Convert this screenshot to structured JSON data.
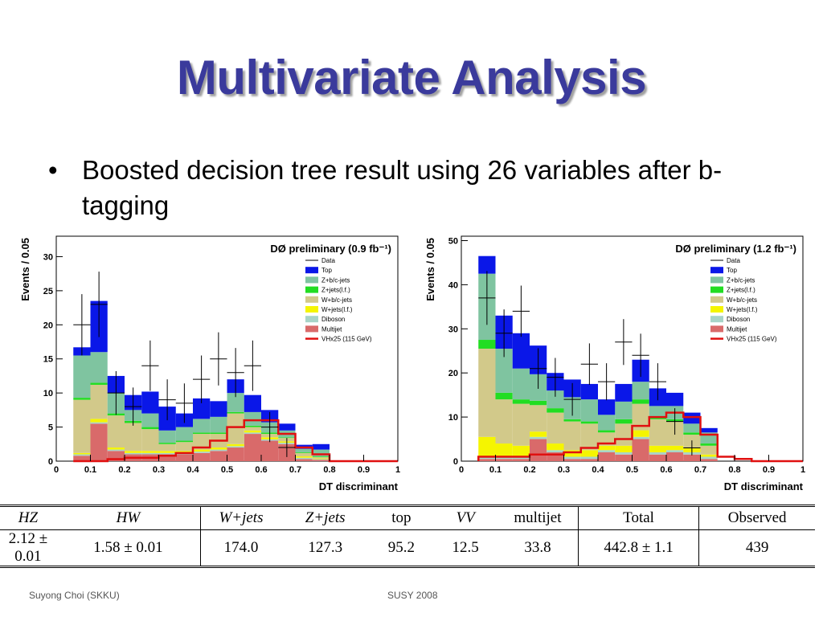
{
  "slide": {
    "title": "Multivariate Analysis",
    "bullet_symbol": "•",
    "bullet": "Boosted decision tree result using 26 variables after b-tagging",
    "footer_left": "Suyong Choi (SKKU)",
    "footer_center": "SUSY 2008"
  },
  "table": {
    "headers": [
      "HZ",
      "HW",
      "W+jets",
      "Z+jets",
      "top",
      "VV",
      "multijet",
      "Total",
      "Observed"
    ],
    "values": [
      "2.12 ± 0.01",
      "1.58 ± 0.01",
      "174.0",
      "127.3",
      "95.2",
      "12.5",
      "33.8",
      "442.8 ± 1.1",
      "439"
    ]
  },
  "chart_data": [
    {
      "type": "bar",
      "stacked": true,
      "title": "DØ preliminary (0.9 fb⁻¹)",
      "xlabel": "DT discriminant",
      "ylabel": "Events / 0.05",
      "xlim": [
        0,
        1
      ],
      "ylim": [
        0,
        33
      ],
      "yticks": [
        0,
        5,
        10,
        15,
        20,
        25,
        30
      ],
      "xticks": [
        0,
        0.1,
        0.2,
        0.3,
        0.4,
        0.5,
        0.6,
        0.7,
        0.8,
        0.9,
        1
      ],
      "bin_edges": [
        0.05,
        0.1,
        0.15,
        0.2,
        0.25,
        0.3,
        0.35,
        0.4,
        0.45,
        0.5,
        0.55,
        0.6,
        0.65,
        0.7,
        0.75,
        0.8,
        0.85,
        0.9,
        0.95,
        1.0
      ],
      "series": [
        {
          "name": "Multijet",
          "color": "#d96a6a",
          "values": [
            0.8,
            5.5,
            1.5,
            1,
            1,
            1,
            1,
            1.2,
            1.5,
            2,
            4,
            3,
            2.5,
            0.3,
            0.2,
            0,
            0,
            0,
            0
          ]
        },
        {
          "name": "Diboson",
          "color": "#a8d4c8",
          "values": [
            0.2,
            0.2,
            0.2,
            0.2,
            0.2,
            0.2,
            0.2,
            0.2,
            0.2,
            0.2,
            0.2,
            0.2,
            0.2,
            0.2,
            0.1,
            0,
            0,
            0,
            0
          ]
        },
        {
          "name": "W+jets(l.f.)",
          "color": "#f5f500",
          "values": [
            0.2,
            0.5,
            0.3,
            0.3,
            0.3,
            0.3,
            0.3,
            0.3,
            0.3,
            0.3,
            0.3,
            0.3,
            0.2,
            0.2,
            0.1,
            0,
            0,
            0,
            0
          ]
        },
        {
          "name": "W+b/c-jets",
          "color": "#d2c98a",
          "values": [
            7.8,
            5,
            4.7,
            4.1,
            3.2,
            1,
            1.3,
            2.3,
            2,
            4.5,
            0.5,
            0.5,
            0.5,
            0.5,
            0.2,
            0,
            0,
            0,
            0
          ]
        },
        {
          "name": "Z+jets(l.f.)",
          "color": "#22dd22",
          "values": [
            0.3,
            0.3,
            0.3,
            0.3,
            0.3,
            0.2,
            0.2,
            0.2,
            0.2,
            0.2,
            0.2,
            0.2,
            0.1,
            0.1,
            0.1,
            0,
            0,
            0,
            0
          ]
        },
        {
          "name": "Z+b/c-jets",
          "color": "#7fc4a0",
          "values": [
            6.2,
            4.5,
            3,
            1.6,
            2,
            1.8,
            2,
            2,
            2.3,
            2.8,
            2,
            1.5,
            1,
            0.5,
            1,
            0,
            0,
            0,
            0
          ]
        },
        {
          "name": "Top",
          "color": "#0a17e8",
          "values": [
            1.2,
            7.5,
            2.5,
            2.2,
            3.2,
            3.5,
            2,
            3,
            2.3,
            2,
            2.5,
            1.8,
            1,
            0.6,
            0.8,
            0,
            0,
            0,
            0
          ]
        }
      ],
      "data_label": "Data",
      "data": [
        {
          "x": 0.075,
          "y": 20,
          "err": 4.5
        },
        {
          "x": 0.125,
          "y": 23,
          "err": 4.8
        },
        {
          "x": 0.175,
          "y": 10,
          "err": 3.2
        },
        {
          "x": 0.225,
          "y": 8,
          "err": 2.8
        },
        {
          "x": 0.275,
          "y": 14,
          "err": 3.7
        },
        {
          "x": 0.325,
          "y": 9,
          "err": 3
        },
        {
          "x": 0.375,
          "y": 8.5,
          "err": 2.9
        },
        {
          "x": 0.425,
          "y": 12,
          "err": 3.5
        },
        {
          "x": 0.475,
          "y": 15,
          "err": 3.9
        },
        {
          "x": 0.525,
          "y": 13,
          "err": 3.6
        },
        {
          "x": 0.575,
          "y": 14,
          "err": 3.7
        },
        {
          "x": 0.625,
          "y": 5,
          "err": 2.2
        },
        {
          "x": 0.675,
          "y": 2,
          "err": 1.4
        }
      ],
      "signal": {
        "name": "VHx25 (115 GeV)",
        "color": "#e01010",
        "values": [
          0,
          0,
          0.3,
          0.5,
          0.5,
          0.8,
          1.2,
          2,
          3,
          5,
          6,
          6,
          4,
          2,
          1,
          0,
          0,
          0,
          0
        ]
      }
    },
    {
      "type": "bar",
      "stacked": true,
      "title": "DØ preliminary (1.2 fb⁻¹)",
      "xlabel": "DT discriminant",
      "ylabel": "Events / 0.05",
      "xlim": [
        0,
        1
      ],
      "ylim": [
        0,
        51
      ],
      "yticks": [
        0,
        10,
        20,
        30,
        40,
        50
      ],
      "xticks": [
        0,
        0.1,
        0.2,
        0.3,
        0.4,
        0.5,
        0.6,
        0.7,
        0.8,
        0.9,
        1
      ],
      "bin_edges": [
        0.05,
        0.1,
        0.15,
        0.2,
        0.25,
        0.3,
        0.35,
        0.4,
        0.45,
        0.5,
        0.55,
        0.6,
        0.65,
        0.7,
        0.75,
        0.8,
        0.85,
        0.9,
        0.95,
        1.0
      ],
      "series": [
        {
          "name": "Multijet",
          "color": "#d96a6a",
          "values": [
            0.5,
            0.5,
            0.5,
            5,
            2,
            0.5,
            0.5,
            2,
            1.5,
            5,
            1.5,
            2,
            1.5,
            0.5,
            0,
            0,
            0,
            0,
            0
          ]
        },
        {
          "name": "Diboson",
          "color": "#a8d4c8",
          "values": [
            0.5,
            0.5,
            0.5,
            0.5,
            0.5,
            0.5,
            0.5,
            0.5,
            0.5,
            0.5,
            0.5,
            0.5,
            0.5,
            0.5,
            0,
            0,
            0,
            0,
            0
          ]
        },
        {
          "name": "W+jets(l.f.)",
          "color": "#f5f500",
          "values": [
            4.5,
            3,
            2.5,
            1.2,
            1.5,
            1.5,
            1.5,
            1,
            1.5,
            1.5,
            1.5,
            1,
            1,
            0.5,
            0,
            0,
            0,
            0,
            0
          ]
        },
        {
          "name": "W+b/c-jets",
          "color": "#d2c98a",
          "values": [
            20,
            10,
            9.5,
            6,
            7,
            6.5,
            6,
            3,
            5,
            6,
            6,
            5.5,
            3,
            2,
            0,
            0,
            0,
            0,
            0
          ]
        },
        {
          "name": "Z+jets(l.f.)",
          "color": "#22dd22",
          "values": [
            2,
            1.5,
            1,
            1,
            1,
            0.5,
            0.5,
            0.5,
            1,
            1,
            0.5,
            0.5,
            0.5,
            0.5,
            0,
            0,
            0,
            0,
            0
          ]
        },
        {
          "name": "Z+b/c-jets",
          "color": "#7fc4a0",
          "values": [
            15,
            10,
            7,
            6,
            4,
            5,
            5,
            3.5,
            4,
            4,
            2.5,
            3,
            2,
            2.5,
            0,
            0,
            0,
            0,
            0
          ]
        },
        {
          "name": "Top",
          "color": "#0a17e8",
          "values": [
            4,
            7.5,
            8,
            6.5,
            4,
            4,
            3.5,
            3.5,
            4,
            5,
            4,
            3,
            2.5,
            1,
            0,
            0,
            0,
            0,
            0
          ]
        }
      ],
      "data_label": "Data",
      "data": [
        {
          "x": 0.075,
          "y": 37,
          "err": 6.1
        },
        {
          "x": 0.125,
          "y": 29,
          "err": 5.4
        },
        {
          "x": 0.175,
          "y": 34,
          "err": 5.8
        },
        {
          "x": 0.225,
          "y": 21,
          "err": 4.6
        },
        {
          "x": 0.275,
          "y": 19,
          "err": 4.4
        },
        {
          "x": 0.325,
          "y": 14,
          "err": 3.7
        },
        {
          "x": 0.375,
          "y": 22,
          "err": 4.7
        },
        {
          "x": 0.425,
          "y": 18,
          "err": 4.2
        },
        {
          "x": 0.475,
          "y": 27,
          "err": 5.2
        },
        {
          "x": 0.525,
          "y": 24,
          "err": 4.9
        },
        {
          "x": 0.575,
          "y": 18,
          "err": 4.2
        },
        {
          "x": 0.625,
          "y": 9,
          "err": 3
        },
        {
          "x": 0.675,
          "y": 3,
          "err": 1.7
        }
      ],
      "signal": {
        "name": "VHx25 (115 GeV)",
        "color": "#e01010",
        "values": [
          1,
          1,
          1,
          1.5,
          1.5,
          2,
          3,
          4,
          5,
          8,
          10,
          11,
          10,
          6,
          1,
          0.5,
          0,
          0,
          0
        ]
      }
    }
  ]
}
